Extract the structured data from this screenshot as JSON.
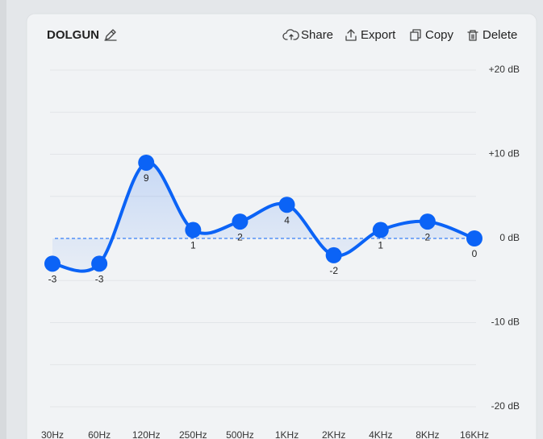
{
  "header": {
    "title": "DOLGUN",
    "actions": [
      "Share",
      "Export",
      "Copy",
      "Delete"
    ]
  },
  "chart_data": {
    "type": "line",
    "categories": [
      "30Hz",
      "60Hz",
      "120Hz",
      "250Hz",
      "500Hz",
      "1KHz",
      "2KHz",
      "4KHz",
      "8KHz",
      "16KHz"
    ],
    "values": [
      -3,
      -3,
      9,
      1,
      2,
      4,
      -2,
      1,
      2,
      0
    ],
    "color": "#0b63f6",
    "ylim": [
      -20,
      20
    ],
    "yticks": [
      {
        "value": 20,
        "label": "+20 dB"
      },
      {
        "value": 10,
        "label": "+10 dB"
      },
      {
        "value": 0,
        "label": "0 dB"
      },
      {
        "value": -10,
        "label": "-10 dB"
      },
      {
        "value": -20,
        "label": "-20 dB"
      }
    ],
    "grid": true
  }
}
